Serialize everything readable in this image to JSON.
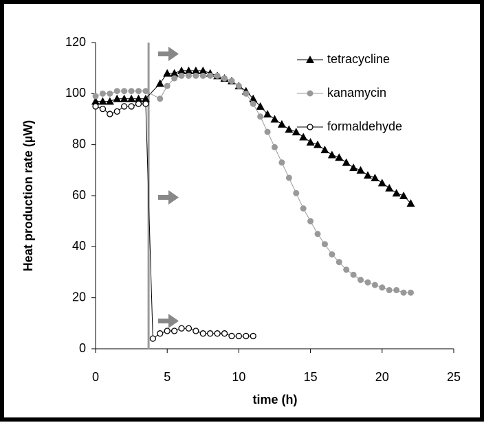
{
  "chart_data": {
    "type": "line",
    "xlabel": "time (h)",
    "ylabel": "Heat production rate (µW)",
    "xlim": [
      0,
      25
    ],
    "xticks": [
      0,
      5,
      10,
      15,
      20,
      25
    ],
    "ylim": [
      0,
      120
    ],
    "yticks": [
      0,
      20,
      40,
      60,
      80,
      100,
      120
    ],
    "legend": "upper right",
    "vline": {
      "x": 3.7,
      "color": "#999999"
    },
    "series": [
      {
        "name": "tetracycline",
        "color": "#000000",
        "marker": "triangle",
        "x": [
          0,
          0.5,
          1,
          1.5,
          2,
          2.5,
          3,
          3.5,
          4.5,
          5,
          5.5,
          6,
          6.5,
          7,
          7.5,
          8,
          8.5,
          9,
          9.5,
          10,
          10.5,
          11,
          11.5,
          12,
          12.5,
          13,
          13.5,
          14,
          14.5,
          15,
          15.5,
          16,
          16.5,
          17,
          17.5,
          18,
          18.5,
          19,
          19.5,
          20,
          20.5,
          21,
          21.5,
          22
        ],
        "values": [
          97,
          97,
          97,
          98,
          98,
          98,
          98,
          98,
          104,
          108,
          108,
          109,
          109,
          109,
          109,
          108,
          107,
          106,
          105,
          103,
          101,
          98,
          95,
          92,
          90,
          88,
          86,
          85,
          83,
          81,
          80,
          78,
          76,
          75,
          73,
          71,
          70,
          68,
          67,
          65,
          63,
          61,
          60,
          57
        ]
      },
      {
        "name": "kanamycin",
        "color": "#999999",
        "marker": "circle",
        "x": [
          0,
          0.5,
          1,
          1.5,
          2,
          2.5,
          3,
          3.5,
          4.5,
          5,
          5.5,
          6,
          6.5,
          7,
          7.5,
          8,
          8.5,
          9,
          9.5,
          10,
          10.5,
          11,
          11.5,
          12,
          12.5,
          13,
          13.5,
          14,
          14.5,
          15,
          15.5,
          16,
          16.5,
          17,
          17.5,
          18,
          18.5,
          19,
          19.5,
          20,
          20.5,
          21,
          21.5,
          22
        ],
        "values": [
          99,
          100,
          100,
          101,
          101,
          101,
          101,
          101,
          98,
          103,
          106,
          107,
          107,
          107,
          107,
          107,
          107,
          106,
          105,
          103,
          100,
          96,
          91,
          85,
          79,
          73,
          67,
          61,
          55,
          50,
          45,
          41,
          37,
          34,
          31,
          29,
          27,
          26,
          25,
          24,
          23,
          23,
          22,
          22
        ]
      },
      {
        "name": "formaldehyde",
        "color": "#000000",
        "marker": "open-circle",
        "x": [
          0,
          0.5,
          1,
          1.5,
          2,
          2.5,
          3,
          3.5,
          4,
          4.5,
          5,
          5.5,
          6,
          6.5,
          7,
          7.5,
          8,
          8.5,
          9,
          9.5,
          10,
          10.5,
          11
        ],
        "values": [
          95,
          94,
          92,
          93,
          95,
          95,
          96,
          96,
          4,
          6,
          7,
          7,
          8,
          8,
          7,
          6,
          6,
          6,
          6,
          5,
          5,
          5,
          5
        ]
      }
    ]
  }
}
